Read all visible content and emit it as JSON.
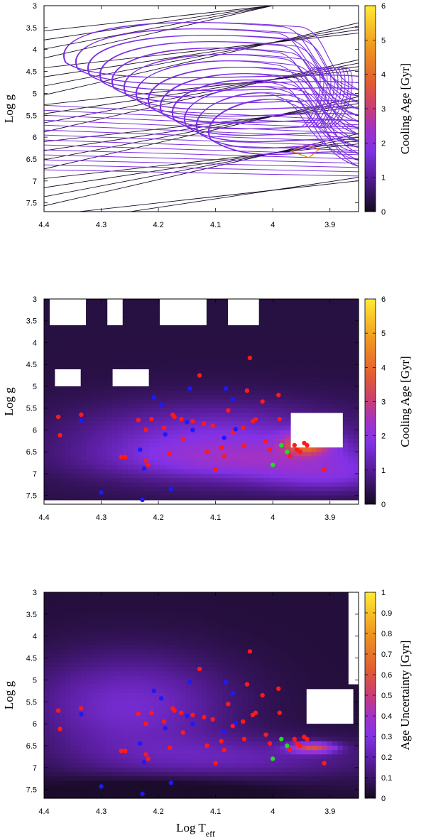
{
  "chart_data": [
    {
      "type": "line",
      "panel": "top",
      "xlabel": "",
      "ylabel": "Log g",
      "colorbar_label": "Cooling Age [Gyr]",
      "xlim": [
        4.4,
        3.85
      ],
      "ylim": [
        3,
        7.7
      ],
      "x_ticks": [
        "4.4",
        "4.3",
        "4.2",
        "4.1",
        "4",
        "3.9"
      ],
      "y_ticks": [
        "3",
        "3.5",
        "4",
        "4.5",
        "5",
        "5.5",
        "6",
        "6.5",
        "7",
        "7.5"
      ],
      "colorbar_ticks": [
        "0",
        "1",
        "2",
        "3",
        "4",
        "5",
        "6"
      ],
      "colorbar_range": [
        0,
        6
      ],
      "colors": {
        "dark": "#1a0a2a",
        "purple": "#7a2de0",
        "orange": "#e07a10"
      }
    },
    {
      "type": "heatmap",
      "panel": "middle",
      "xlabel": "",
      "ylabel": "Log g",
      "colorbar_label": "Cooling Age [Gyr]",
      "xlim": [
        4.4,
        3.85
      ],
      "ylim": [
        3,
        7.7
      ],
      "x_ticks": [
        "4.4",
        "4.3",
        "4.2",
        "4.1",
        "4",
        "3.9"
      ],
      "y_ticks": [
        "3",
        "3.5",
        "4",
        "4.5",
        "5",
        "5.5",
        "6",
        "6.5",
        "7",
        "7.5"
      ],
      "colorbar_ticks": [
        "0",
        "1",
        "2",
        "3",
        "4",
        "5",
        "6"
      ],
      "colorbar_range": [
        0,
        6
      ]
    },
    {
      "type": "heatmap",
      "panel": "bottom",
      "xlabel": "Log T",
      "xlabel_sub": "eff",
      "ylabel": "Log g",
      "colorbar_label": "Age Uncertainty [Gyr]",
      "xlim": [
        4.4,
        3.85
      ],
      "ylim": [
        3,
        7.7
      ],
      "x_ticks": [
        "4.4",
        "4.3",
        "4.2",
        "4.1",
        "4",
        "3.9"
      ],
      "y_ticks": [
        "3",
        "3.5",
        "4",
        "4.5",
        "5",
        "5.5",
        "6",
        "6.5",
        "7",
        "7.5"
      ],
      "colorbar_ticks": [
        "0",
        "0.1",
        "0.2",
        "0.3",
        "0.4",
        "0.5",
        "0.6",
        "0.7",
        "0.8",
        "0.9",
        "1"
      ],
      "colorbar_range": [
        0,
        1
      ]
    }
  ],
  "points": {
    "red": [
      [
        4.375,
        5.7
      ],
      [
        4.372,
        6.12
      ],
      [
        4.335,
        5.65
      ],
      [
        4.265,
        6.62
      ],
      [
        4.258,
        6.62
      ],
      [
        4.235,
        5.77
      ],
      [
        4.222,
        6.7
      ],
      [
        4.222,
        6.0
      ],
      [
        4.218,
        6.8
      ],
      [
        4.212,
        5.75
      ],
      [
        4.19,
        5.95
      ],
      [
        4.18,
        6.55
      ],
      [
        4.175,
        5.65
      ],
      [
        4.172,
        5.7
      ],
      [
        4.16,
        5.75
      ],
      [
        4.157,
        6.2
      ],
      [
        4.14,
        5.8
      ],
      [
        4.128,
        4.75
      ],
      [
        4.12,
        5.85
      ],
      [
        4.115,
        6.5
      ],
      [
        4.105,
        5.9
      ],
      [
        4.1,
        6.9
      ],
      [
        4.09,
        6.4
      ],
      [
        4.085,
        6.6
      ],
      [
        4.078,
        5.55
      ],
      [
        4.07,
        6.05
      ],
      [
        4.052,
        5.95
      ],
      [
        4.05,
        6.35
      ],
      [
        4.045,
        5.1
      ],
      [
        4.04,
        4.35
      ],
      [
        4.035,
        5.8
      ],
      [
        4.03,
        5.75
      ],
      [
        4.018,
        5.35
      ],
      [
        4.012,
        6.25
      ],
      [
        4.005,
        6.45
      ],
      [
        3.99,
        5.2
      ],
      [
        3.988,
        5.75
      ],
      [
        3.97,
        6.6
      ],
      [
        3.962,
        6.35
      ],
      [
        3.958,
        6.45
      ],
      [
        3.952,
        6.5
      ],
      [
        3.945,
        6.3
      ],
      [
        3.94,
        6.35
      ],
      [
        3.91,
        6.9
      ]
    ],
    "blue": [
      [
        4.335,
        5.78
      ],
      [
        4.3,
        7.43
      ],
      [
        4.232,
        6.45
      ],
      [
        4.228,
        7.6
      ],
      [
        4.225,
        6.88
      ],
      [
        4.208,
        5.25
      ],
      [
        4.195,
        5.42
      ],
      [
        4.188,
        6.1
      ],
      [
        4.178,
        7.35
      ],
      [
        4.15,
        5.82
      ],
      [
        4.145,
        5.05
      ],
      [
        4.14,
        6.0
      ],
      [
        4.085,
        6.18
      ],
      [
        4.082,
        5.05
      ],
      [
        4.07,
        5.3
      ],
      [
        4.065,
        5.98
      ]
    ],
    "green": [
      [
        3.985,
        6.35
      ],
      [
        3.975,
        6.5
      ],
      [
        4.0,
        6.8
      ]
    ]
  }
}
